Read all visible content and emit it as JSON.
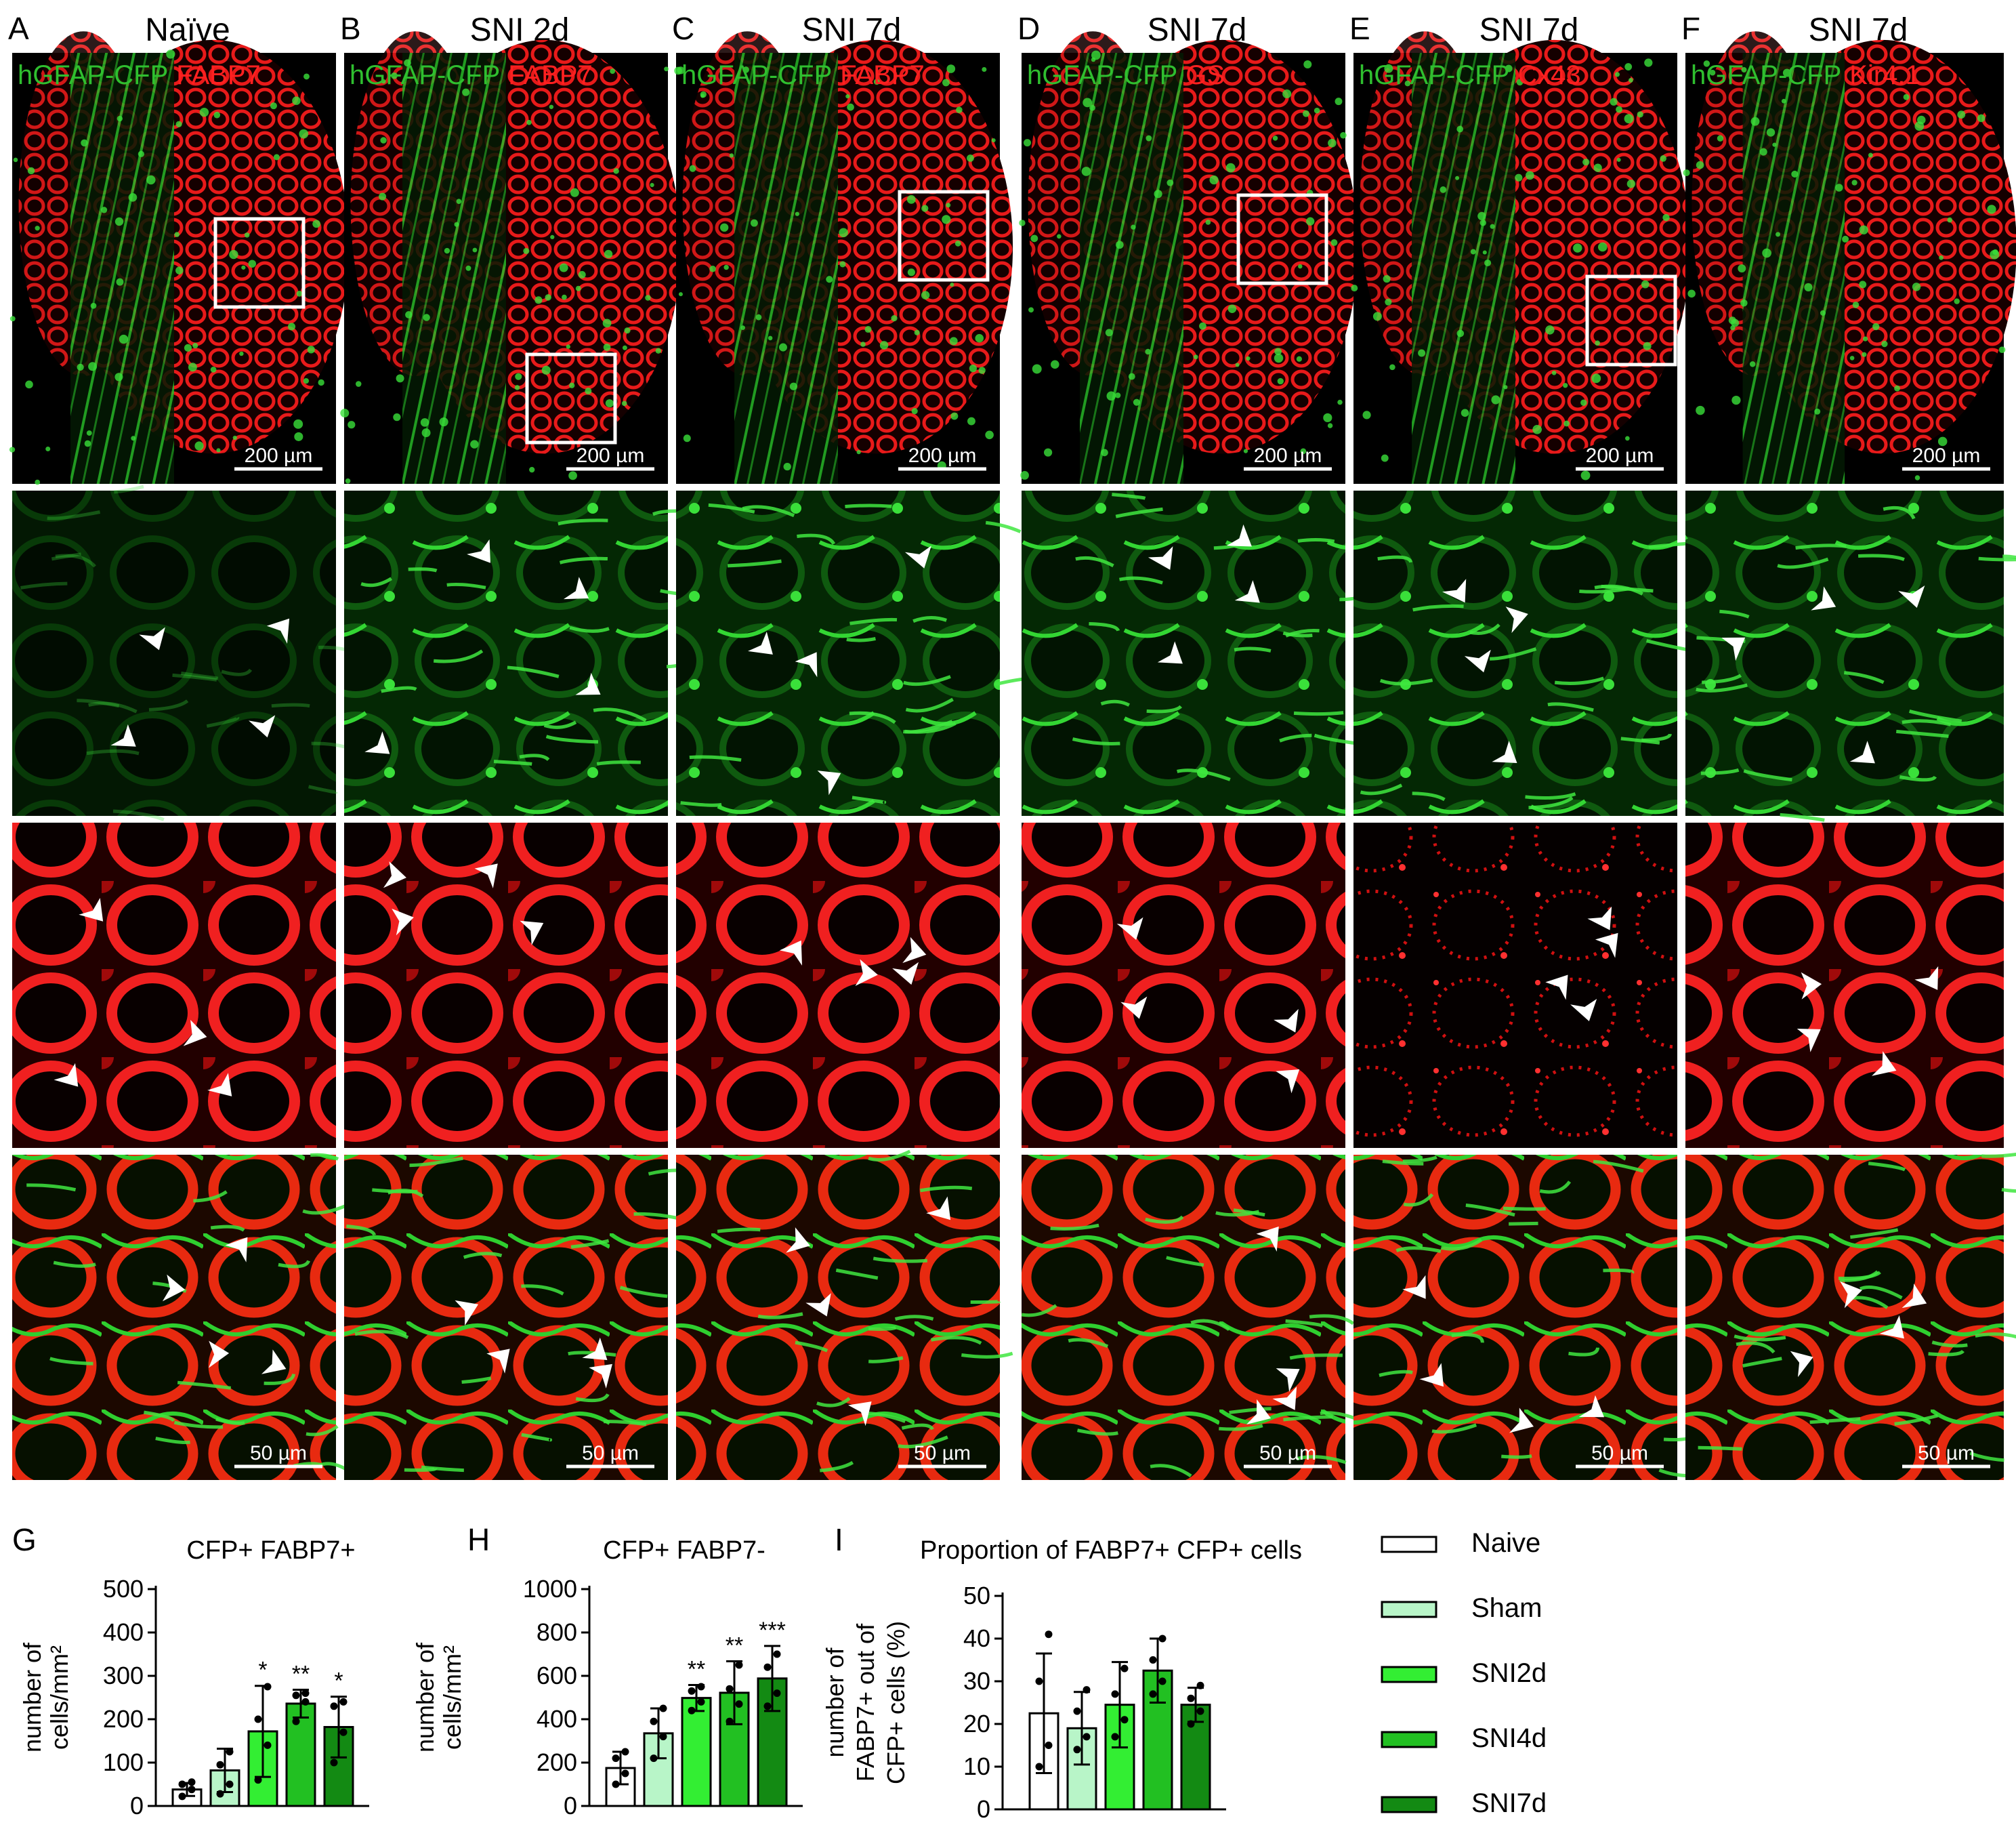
{
  "columns": [
    {
      "letter": "A",
      "title": "Naïve",
      "stain_green": "hGFAP-CFP",
      "stain_red": "FABP7",
      "scale_top": "200 µm",
      "scale_bottom": "50 µm"
    },
    {
      "letter": "B",
      "title": "SNI 2d",
      "stain_green": "hGFAP-CFP",
      "stain_red": "FABP7",
      "scale_top": "200 µm",
      "scale_bottom": "50 µm"
    },
    {
      "letter": "C",
      "title": "SNI 7d",
      "stain_green": "hGFAP-CFP",
      "stain_red": "FABP7",
      "scale_top": "200 µm",
      "scale_bottom": "50 µm"
    },
    {
      "letter": "D",
      "title": "SNI 7d",
      "stain_green": "hGFAP-CFP",
      "stain_red": "GS",
      "scale_top": "200 µm",
      "scale_bottom": "50 µm"
    },
    {
      "letter": "E",
      "title": "SNI 7d",
      "stain_green": "hGFAP-CFP",
      "stain_red": "Cx43",
      "scale_top": "200 µm",
      "scale_bottom": "50 µm"
    },
    {
      "letter": "F",
      "title": "SNI 7d",
      "stain_green": "hGFAP-CFP",
      "stain_red": "Kir4.1",
      "scale_top": "200 µm",
      "scale_bottom": "50 µm"
    }
  ],
  "colors": {
    "green": "#2fbf2f",
    "red": "#ff2020",
    "bar_naive": "#ffffff",
    "bar_sham": "#b8f5c8",
    "bar_sni2d": "#33ee33",
    "bar_sni4d": "#22c022",
    "bar_sni7d": "#138a13"
  },
  "chart_data": [
    {
      "letter": "G",
      "type": "bar",
      "title": "CFP+ FABP7+",
      "ylabel": [
        "number of",
        "cells/mm²"
      ],
      "categories": [
        "Naive",
        "Sham",
        "SNI2d",
        "SNI4d",
        "SNI7d"
      ],
      "values": [
        38,
        82,
        172,
        236,
        182
      ],
      "errors": [
        15,
        50,
        105,
        32,
        70
      ],
      "significance": [
        "",
        "",
        "*",
        "**",
        "*"
      ],
      "points": [
        [
          22,
          38,
          50,
          55
        ],
        [
          28,
          50,
          95,
          125
        ],
        [
          60,
          140,
          200,
          275
        ],
        [
          195,
          240,
          255,
          260
        ],
        [
          100,
          170,
          230,
          240
        ]
      ],
      "ylim": [
        0,
        500
      ],
      "yticks": [
        "0",
        "100",
        "200",
        "300",
        "400",
        "500"
      ]
    },
    {
      "letter": "H",
      "type": "bar",
      "title": "CFP+ FABP7-",
      "ylabel": [
        "number of",
        "cells/mm²"
      ],
      "categories": [
        "Naive",
        "Sham",
        "SNI2d",
        "SNI4d",
        "SNI7d"
      ],
      "values": [
        175,
        335,
        498,
        522,
        588
      ],
      "errors": [
        75,
        115,
        60,
        145,
        150
      ],
      "significance": [
        "",
        "",
        "**",
        "**",
        "***"
      ],
      "points": [
        [
          100,
          150,
          220,
          250
        ],
        [
          220,
          320,
          390,
          450
        ],
        [
          440,
          480,
          530,
          550
        ],
        [
          390,
          470,
          540,
          650
        ],
        [
          460,
          520,
          640,
          700
        ]
      ],
      "ylim": [
        0,
        1000
      ],
      "yticks": [
        "0",
        "200",
        "400",
        "600",
        "800",
        "1000"
      ]
    },
    {
      "letter": "I",
      "type": "bar",
      "title": "Proportion of FABP7+ CFP+ cells",
      "ylabel": [
        "number of",
        "FABP7+ out of",
        "CFP+ cells (%)"
      ],
      "categories": [
        "Naive",
        "Sham",
        "SNI2d",
        "SNI4d",
        "SNI7d"
      ],
      "values": [
        22.5,
        19,
        24.5,
        32.5,
        24.5
      ],
      "errors": [
        14,
        8.5,
        10,
        7.5,
        4
      ],
      "significance": [
        "",
        "",
        "",
        "",
        ""
      ],
      "points": [
        [
          10,
          15,
          30,
          41
        ],
        [
          14,
          17,
          23,
          28
        ],
        [
          17,
          21,
          27,
          33
        ],
        [
          27,
          30,
          35,
          40
        ],
        [
          20,
          23,
          26,
          29
        ]
      ],
      "ylim": [
        0,
        50
      ],
      "yticks": [
        "0",
        "10",
        "20",
        "30",
        "40",
        "50"
      ]
    }
  ],
  "legend": {
    "items": [
      "Naive",
      "Sham",
      "SNI2d",
      "SNI4d",
      "SNI7d"
    ]
  }
}
